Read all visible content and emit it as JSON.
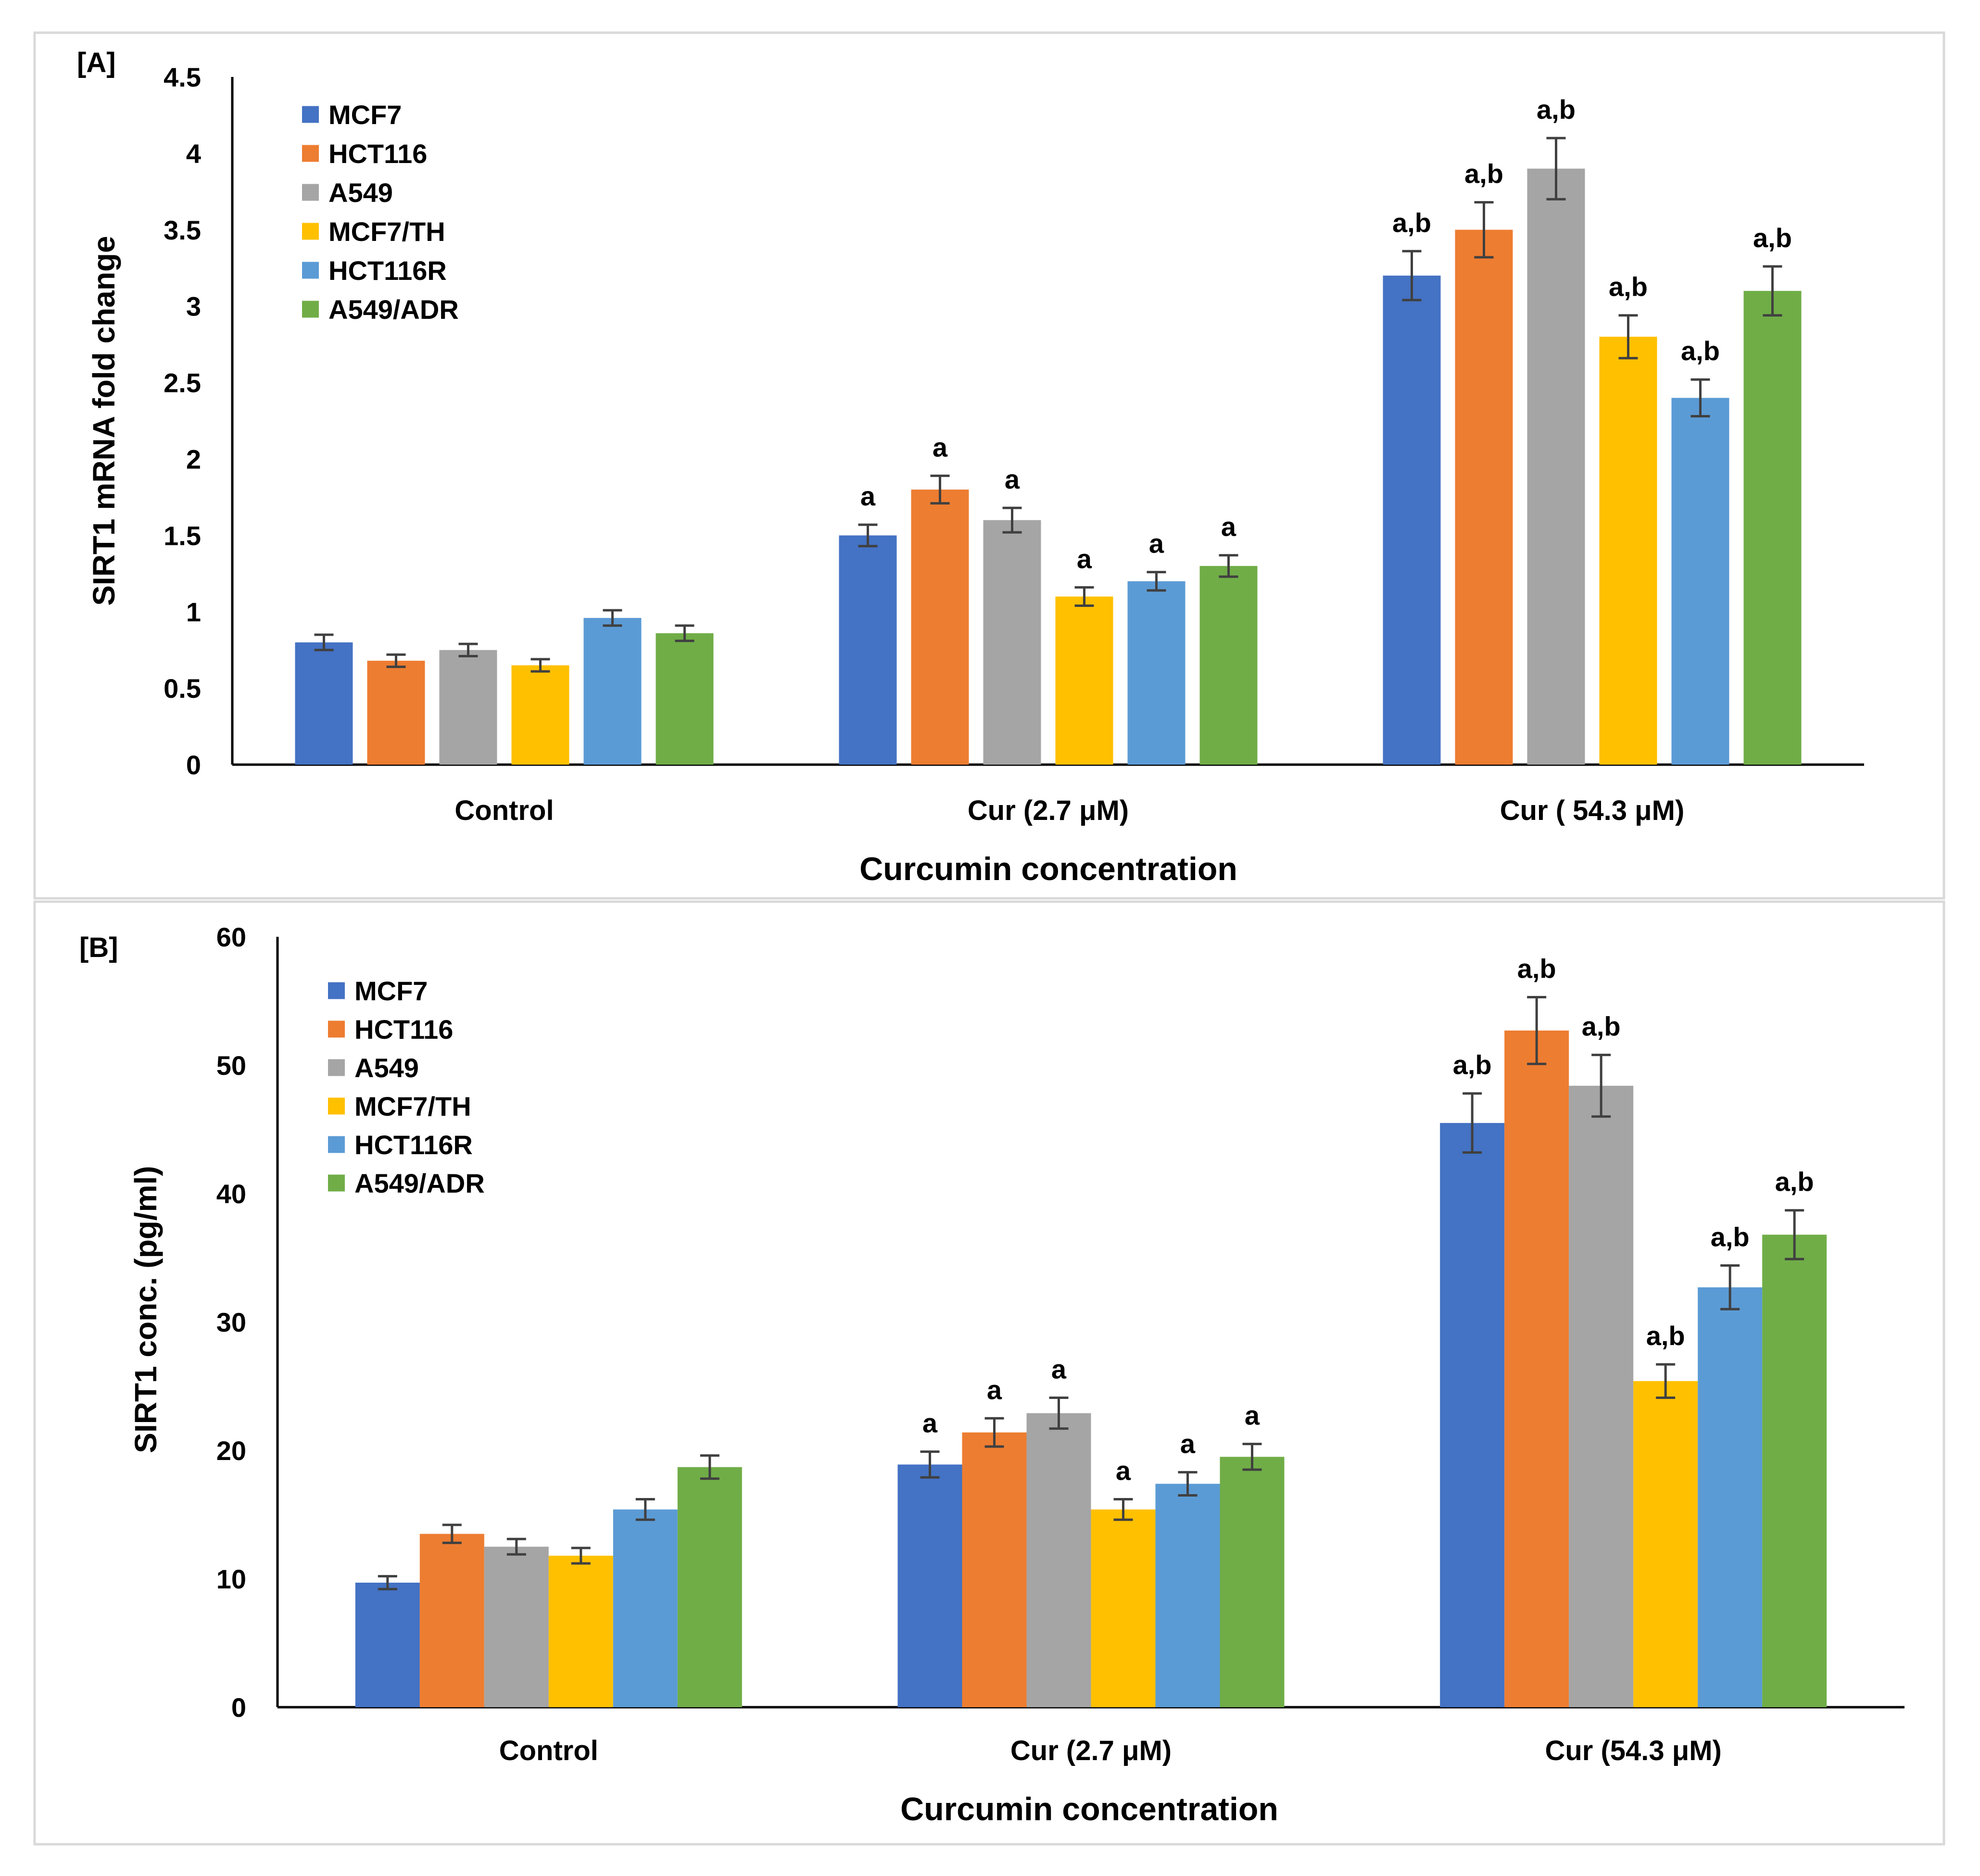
{
  "colors": {
    "series": [
      "#4472C4",
      "#ED7D31",
      "#A5A5A5",
      "#FFC000",
      "#5B9BD5",
      "#70AD47"
    ],
    "axis": "#000000",
    "error_bar": "#404040",
    "frame": "#D9D9D9"
  },
  "chart_data": [
    {
      "type": "bar",
      "panel_label": "[A]",
      "title": "",
      "xlabel": "Curcumin concentration",
      "ylabel": "SIRT1 mRNA fold change",
      "ylim": [
        0,
        4.5
      ],
      "yticks": [
        "0",
        "0.5",
        "1",
        "1.5",
        "2",
        "2.5",
        "3",
        "3.5",
        "4",
        "4.5"
      ],
      "categories": [
        "Control",
        "Cur (2.7  μM)",
        "Cur ( 54.3 μM)"
      ],
      "legend_position": "top-left",
      "series": [
        {
          "name": "MCF7",
          "values": [
            0.8,
            1.5,
            3.2
          ],
          "errors": [
            0.05,
            0.07,
            0.16
          ],
          "annotations": [
            "",
            "a",
            "a,b"
          ]
        },
        {
          "name": "HCT116",
          "values": [
            0.68,
            1.8,
            3.5
          ],
          "errors": [
            0.04,
            0.09,
            0.18
          ],
          "annotations": [
            "",
            "a",
            "a,b"
          ]
        },
        {
          "name": "A549",
          "values": [
            0.75,
            1.6,
            3.9
          ],
          "errors": [
            0.04,
            0.08,
            0.2
          ],
          "annotations": [
            "",
            "a",
            "a,b"
          ]
        },
        {
          "name": "MCF7/TH",
          "values": [
            0.65,
            1.1,
            2.8
          ],
          "errors": [
            0.04,
            0.06,
            0.14
          ],
          "annotations": [
            "",
            "a",
            "a,b"
          ]
        },
        {
          "name": "HCT116R",
          "values": [
            0.96,
            1.2,
            2.4
          ],
          "errors": [
            0.05,
            0.06,
            0.12
          ],
          "annotations": [
            "",
            "a",
            "a,b"
          ]
        },
        {
          "name": "A549/ADR",
          "values": [
            0.86,
            1.3,
            3.1
          ],
          "errors": [
            0.05,
            0.07,
            0.16
          ],
          "annotations": [
            "",
            "a",
            "a,b"
          ]
        }
      ]
    },
    {
      "type": "bar",
      "panel_label": "[B]",
      "title": "",
      "xlabel": "Curcumin concentration",
      "ylabel": "SIRT1 conc. (pg/ml)",
      "ylim": [
        0,
        60
      ],
      "yticks": [
        "0",
        "10",
        "20",
        "30",
        "40",
        "50",
        "60"
      ],
      "categories": [
        "Control",
        "Cur (2.7  μM)",
        "Cur (54.3 μM)"
      ],
      "legend_position": "top-left",
      "series": [
        {
          "name": "MCF7",
          "values": [
            9.7,
            18.9,
            45.5
          ],
          "errors": [
            0.5,
            1.0,
            2.3
          ],
          "annotations": [
            "",
            "a",
            "a,b"
          ]
        },
        {
          "name": "HCT116",
          "values": [
            13.5,
            21.4,
            52.7
          ],
          "errors": [
            0.7,
            1.1,
            2.6
          ],
          "annotations": [
            "",
            "a",
            "a,b"
          ]
        },
        {
          "name": "A549",
          "values": [
            12.5,
            22.9,
            48.4
          ],
          "errors": [
            0.6,
            1.2,
            2.4
          ],
          "annotations": [
            "",
            "a",
            "a,b"
          ]
        },
        {
          "name": "MCF7/TH",
          "values": [
            11.8,
            15.4,
            25.4
          ],
          "errors": [
            0.6,
            0.8,
            1.3
          ],
          "annotations": [
            "",
            "a",
            "a,b"
          ]
        },
        {
          "name": "HCT116R",
          "values": [
            15.4,
            17.4,
            32.7
          ],
          "errors": [
            0.8,
            0.9,
            1.7
          ],
          "annotations": [
            "",
            "a",
            "a,b"
          ]
        },
        {
          "name": "A549/ADR",
          "values": [
            18.7,
            19.5,
            36.8
          ],
          "errors": [
            0.9,
            1.0,
            1.9
          ],
          "annotations": [
            "",
            "a",
            "a,b"
          ]
        }
      ]
    }
  ]
}
